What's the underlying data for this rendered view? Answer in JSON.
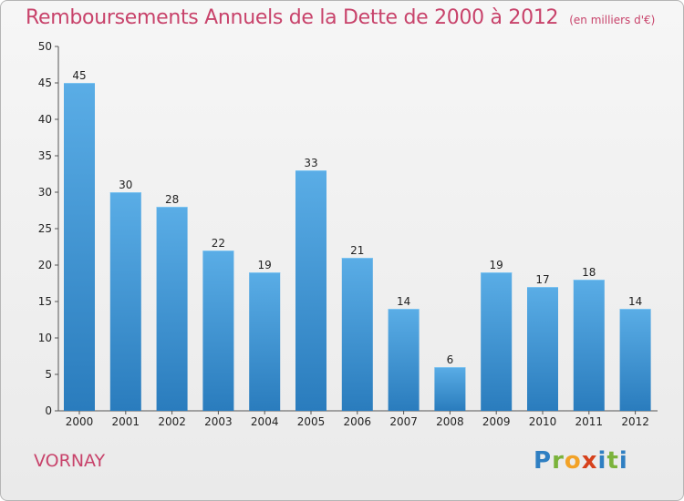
{
  "title": "Remboursements Annuels de la Dette de 2000 à 2012",
  "unit": "(en milliers d'€)",
  "commune": "VORNAY",
  "logo": {
    "letters": [
      "P",
      "r",
      "o",
      "x",
      "i",
      "t",
      "i"
    ]
  },
  "colors": {
    "title": "#c8436b",
    "bar_top": "#5aade6",
    "bar_bottom": "#2a7cbd",
    "grid": "#bdbdbd"
  },
  "chart_data": {
    "type": "bar",
    "title": "Remboursements Annuels de la Dette de 2000 à 2012",
    "categories": [
      "2000",
      "2001",
      "2002",
      "2003",
      "2004",
      "2005",
      "2006",
      "2007",
      "2008",
      "2009",
      "2010",
      "2011",
      "2012"
    ],
    "values": [
      45,
      30,
      28,
      22,
      19,
      33,
      21,
      14,
      6,
      19,
      17,
      18,
      14
    ],
    "ylim": [
      0,
      50
    ],
    "yticks": [
      0,
      5,
      10,
      15,
      20,
      25,
      30,
      35,
      40,
      45,
      50
    ],
    "grid": false,
    "xlabel": "",
    "ylabel": ""
  }
}
